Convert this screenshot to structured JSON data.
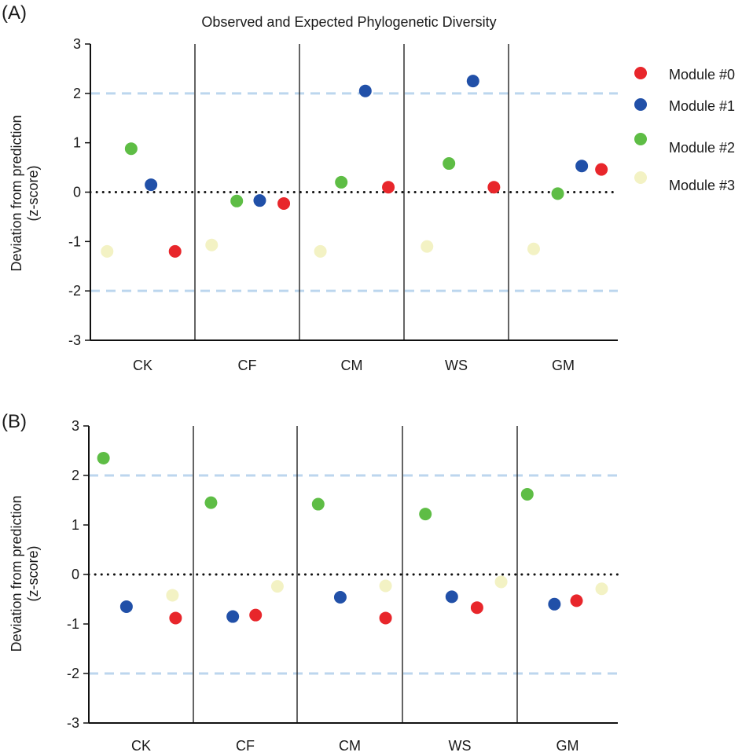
{
  "colors": {
    "module0": "#e8262b",
    "module1": "#2150a8",
    "module2": "#5ebd45",
    "module3": "#f3f2c4",
    "threshold": "#bcd6ee",
    "zero_line": "#111111"
  },
  "chart_data": [
    {
      "type": "scatter",
      "panel_label": "(A)",
      "title": "Observed and Expected Phylogenetic Diversity",
      "xlabel": "",
      "ylabel": "Deviation from prediction",
      "ylabel2": "(z-score)",
      "categories": [
        "CK",
        "CF",
        "CM",
        "WS",
        "GM"
      ],
      "ylim": [
        -3,
        3
      ],
      "yticks": [
        "3",
        "2",
        "1",
        "0",
        "-1",
        "-2",
        "-3"
      ],
      "threshold_lines": [
        2,
        -2
      ],
      "zero_line": 0,
      "series": [
        {
          "name": "Module #0",
          "color_key": "module0",
          "values": [
            -1.2,
            -0.23,
            0.1,
            0.1,
            0.46
          ]
        },
        {
          "name": "Module #1",
          "color_key": "module1",
          "values": [
            0.15,
            -0.17,
            2.05,
            2.25,
            0.53
          ]
        },
        {
          "name": "Module #2",
          "color_key": "module2",
          "values": [
            0.88,
            -0.18,
            0.2,
            0.58,
            -0.03
          ]
        },
        {
          "name": "Module #3",
          "color_key": "module3",
          "values": [
            -1.2,
            -1.07,
            -1.2,
            -1.1,
            -1.15
          ]
        }
      ],
      "legend_position": "right"
    },
    {
      "type": "scatter",
      "panel_label": "(B)",
      "title": "",
      "xlabel": "",
      "ylabel": "Deviation from prediction",
      "ylabel2": "(z-score)",
      "categories": [
        "CK",
        "CF",
        "CM",
        "WS",
        "GM"
      ],
      "ylim": [
        -3,
        3
      ],
      "yticks": [
        "3",
        "2",
        "1",
        "0",
        "-1",
        "-2",
        "-3"
      ],
      "threshold_lines": [
        2,
        -2
      ],
      "zero_line": 0,
      "series": [
        {
          "name": "Module #0",
          "color_key": "module0",
          "values": [
            -0.88,
            -0.82,
            -0.88,
            -0.67,
            -0.53
          ]
        },
        {
          "name": "Module #1",
          "color_key": "module1",
          "values": [
            -0.65,
            -0.85,
            -0.46,
            -0.45,
            -0.6
          ]
        },
        {
          "name": "Module #2",
          "color_key": "module2",
          "values": [
            2.35,
            1.45,
            1.42,
            1.22,
            1.62
          ]
        },
        {
          "name": "Module #3",
          "color_key": "module3",
          "values": [
            -0.42,
            -0.24,
            -0.23,
            -0.15,
            -0.29
          ]
        }
      ]
    }
  ]
}
